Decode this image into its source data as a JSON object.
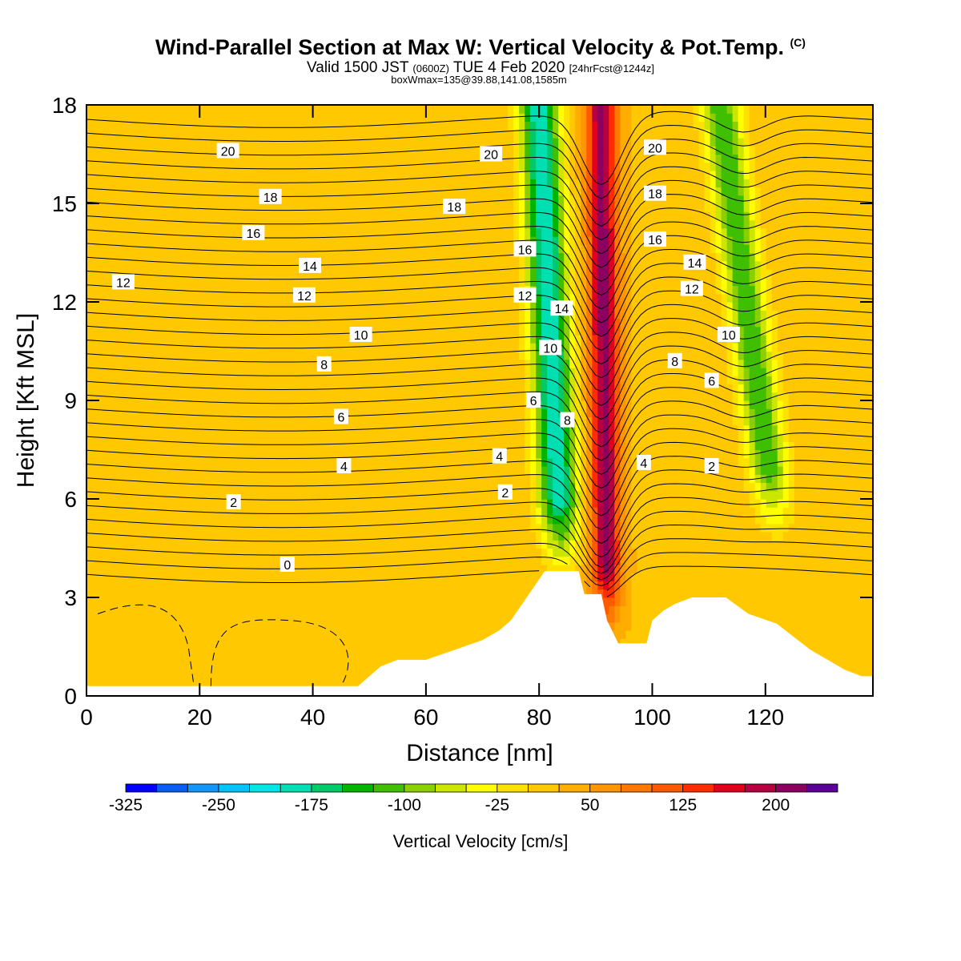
{
  "header": {
    "title": "Wind-Parallel Section at Max W: Vertical Velocity & Pot.Temp.",
    "copyright": "(C)",
    "valid_prefix": "Valid 1500 JST",
    "valid_utc": "(0600Z)",
    "valid_date": "TUE 4 Feb 2020",
    "forecast_info": "[24hrFcst@1244z]",
    "box_info": "boxWmax=135@39.88,141.08,1585m"
  },
  "chart_data": {
    "type": "heatmap",
    "xlabel": "Distance [nm]",
    "ylabel": "Height [Kft MSL]",
    "xlim": [
      0,
      139
    ],
    "ylim": [
      0,
      18
    ],
    "x_ticks": [
      0,
      20,
      40,
      60,
      80,
      100,
      120
    ],
    "y_ticks": [
      0,
      3,
      6,
      9,
      12,
      15,
      18
    ],
    "colorbar": {
      "title": "Vertical Velocity [cm/s]",
      "tick_labels": [
        "-325",
        "-250",
        "-175",
        "-100",
        "-25",
        "50",
        "125",
        "200"
      ],
      "levels_min": -325,
      "level_step": 25,
      "colors": [
        "#0000ff",
        "#0a5df2",
        "#1495f7",
        "#00c3f7",
        "#00e6e6",
        "#00dfb2",
        "#00c96a",
        "#00b400",
        "#3fbf00",
        "#8ccf00",
        "#cce600",
        "#ffff00",
        "#ffe100",
        "#ffc800",
        "#ffad00",
        "#ff9500",
        "#ff7800",
        "#ff5a00",
        "#ff2d00",
        "#e0001e",
        "#b70040",
        "#8c0060",
        "#5a0096"
      ]
    },
    "velocity_field": {
      "background_cm_s": 20,
      "features": [
        {
          "kind": "downdraft",
          "x_center_bottom": 84,
          "x_center_top": 80,
          "min_cm_s": -200,
          "height_range": [
            4,
            18
          ]
        },
        {
          "kind": "updraft",
          "x_center_bottom": 92,
          "x_center_top": 91,
          "max_cm_s": 210,
          "height_range": [
            2,
            18
          ]
        },
        {
          "kind": "downdraft",
          "x_center_bottom": 122,
          "x_center_top": 112,
          "min_cm_s": -125,
          "height_range": [
            5,
            18
          ]
        }
      ]
    },
    "terrain": [
      [
        0,
        0.3
      ],
      [
        48,
        0.3
      ],
      [
        50,
        0.6
      ],
      [
        52,
        0.9
      ],
      [
        55,
        1.1
      ],
      [
        60,
        1.1
      ],
      [
        65,
        1.4
      ],
      [
        70,
        1.7
      ],
      [
        73,
        2.0
      ],
      [
        75,
        2.3
      ],
      [
        77,
        2.8
      ],
      [
        79,
        3.3
      ],
      [
        81,
        3.8
      ],
      [
        87,
        3.8
      ],
      [
        88,
        3.1
      ],
      [
        91,
        3.1
      ],
      [
        92,
        2.3
      ],
      [
        94,
        1.6
      ],
      [
        99,
        1.6
      ],
      [
        100,
        2.3
      ],
      [
        102,
        2.6
      ],
      [
        104,
        2.8
      ],
      [
        107,
        3.0
      ],
      [
        113,
        3.0
      ],
      [
        117,
        2.5
      ],
      [
        122,
        2.2
      ],
      [
        125,
        1.8
      ],
      [
        128,
        1.4
      ],
      [
        131,
        1.1
      ],
      [
        134,
        0.8
      ],
      [
        137,
        0.6
      ],
      [
        139,
        0.6
      ]
    ],
    "potential_temperature_contours": {
      "units": "C",
      "levels": [
        0,
        2,
        4,
        6,
        8,
        10,
        12,
        14,
        16,
        18,
        20
      ],
      "labels": [
        {
          "text": "20",
          "x": 25,
          "y": 16.6
        },
        {
          "text": "18",
          "x": 32.5,
          "y": 15.2
        },
        {
          "text": "16",
          "x": 29.5,
          "y": 14.1
        },
        {
          "text": "14",
          "x": 39.5,
          "y": 13.1
        },
        {
          "text": "12",
          "x": 6.5,
          "y": 12.6
        },
        {
          "text": "12",
          "x": 38.5,
          "y": 12.2
        },
        {
          "text": "10",
          "x": 48.5,
          "y": 11.0
        },
        {
          "text": "8",
          "x": 42,
          "y": 10.1
        },
        {
          "text": "6",
          "x": 45,
          "y": 8.5
        },
        {
          "text": "4",
          "x": 45.5,
          "y": 7.0
        },
        {
          "text": "2",
          "x": 26,
          "y": 5.9
        },
        {
          "text": "0",
          "x": 35.5,
          "y": 4.0
        },
        {
          "text": "20",
          "x": 71.5,
          "y": 16.5
        },
        {
          "text": "18",
          "x": 65,
          "y": 14.9
        },
        {
          "text": "16",
          "x": 77.5,
          "y": 13.6
        },
        {
          "text": "12",
          "x": 77.5,
          "y": 12.2
        },
        {
          "text": "14",
          "x": 84,
          "y": 11.8
        },
        {
          "text": "10",
          "x": 82,
          "y": 10.6
        },
        {
          "text": "6",
          "x": 79,
          "y": 9.0
        },
        {
          "text": "8",
          "x": 85,
          "y": 8.4
        },
        {
          "text": "4",
          "x": 73,
          "y": 7.3
        },
        {
          "text": "2",
          "x": 74,
          "y": 6.2
        },
        {
          "text": "20",
          "x": 100.5,
          "y": 16.7
        },
        {
          "text": "18",
          "x": 100.5,
          "y": 15.3
        },
        {
          "text": "16",
          "x": 100.5,
          "y": 13.9
        },
        {
          "text": "14",
          "x": 107.5,
          "y": 13.2
        },
        {
          "text": "12",
          "x": 107,
          "y": 12.4
        },
        {
          "text": "10",
          "x": 113.5,
          "y": 11.0
        },
        {
          "text": "8",
          "x": 104,
          "y": 10.2
        },
        {
          "text": "6",
          "x": 110.5,
          "y": 9.6
        },
        {
          "text": "4",
          "x": 98.5,
          "y": 7.1
        },
        {
          "text": "2",
          "x": 110.5,
          "y": 7.0
        }
      ]
    }
  }
}
